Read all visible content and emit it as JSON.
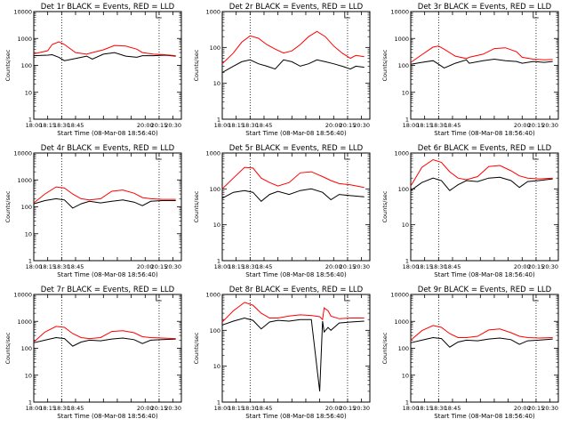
{
  "colors": {
    "events": "#000000",
    "lld": "#ff0000",
    "background": "#ffffff"
  },
  "chart_data": [
    {
      "type": "line",
      "title": "Det 1r BLACK = Events, RED = LLD",
      "xlabel": "Start Time (08-Mar-08 18:56:40)",
      "ylabel": "Counts/sec",
      "xticks": [
        "18:00",
        "18:15",
        "18:30",
        "18:45",
        "20:00",
        "20:15",
        "20:30"
      ],
      "yticks": [
        "1",
        "10",
        "100",
        "1000",
        "10000"
      ],
      "yscale": "log",
      "ylim": [
        1,
        10000
      ],
      "x_hours": [
        18.0,
        18.25,
        18.33,
        18.45,
        18.55,
        18.75,
        18.95,
        19.05,
        19.25,
        19.45,
        19.65,
        19.85,
        19.95,
        20.15,
        20.35,
        20.55
      ],
      "series": [
        {
          "name": "BLACK = Events",
          "values": [
            230,
            240,
            250,
            200,
            150,
            180,
            220,
            170,
            260,
            300,
            220,
            200,
            230,
            230,
            240,
            220
          ]
        },
        {
          "name": "RED = LLD",
          "values": [
            270,
            350,
            600,
            750,
            600,
            300,
            260,
            300,
            380,
            550,
            520,
            400,
            300,
            260,
            250,
            230
          ]
        }
      ]
    },
    {
      "type": "line",
      "title": "Det 2r BLACK = Events, RED = LLD",
      "xlabel": "Start Time (08-Mar-08 18:56:40)",
      "ylabel": "Counts/sec",
      "xticks": [
        "18:00",
        "18:15",
        "18:30",
        "18:45",
        "20:00",
        "20:15",
        "20:30"
      ],
      "yticks": [
        "1",
        "10",
        "100",
        "1000"
      ],
      "yscale": "log",
      "ylim": [
        1,
        1000
      ],
      "x_hours": [
        18.0,
        18.2,
        18.35,
        18.5,
        18.65,
        18.8,
        18.95,
        19.1,
        19.25,
        19.4,
        19.55,
        19.7,
        19.85,
        20.0,
        20.15,
        20.3,
        20.4,
        20.55
      ],
      "series": [
        {
          "name": "BLACK = Events",
          "values": [
            20,
            30,
            40,
            45,
            35,
            30,
            25,
            45,
            40,
            30,
            35,
            45,
            40,
            35,
            30,
            25,
            30,
            28
          ]
        },
        {
          "name": "RED = LLD",
          "values": [
            35,
            70,
            140,
            210,
            180,
            120,
            90,
            70,
            80,
            120,
            200,
            280,
            200,
            110,
            70,
            50,
            60,
            55
          ]
        }
      ]
    },
    {
      "type": "line",
      "title": "Det 3r BLACK = Events, RED = LLD",
      "xlabel": "Start Time (08-Mar-08 18:56:40)",
      "ylabel": "Counts/sec",
      "xticks": [
        "18:00",
        "18:15",
        "18:30",
        "18:45",
        "20:00",
        "20:15",
        "20:30"
      ],
      "yticks": [
        "1",
        "10",
        "100",
        "1000",
        "10000"
      ],
      "yscale": "log",
      "ylim": [
        1,
        10000
      ],
      "x_hours": [
        18.0,
        18.2,
        18.4,
        18.5,
        18.6,
        18.8,
        19.0,
        19.05,
        19.3,
        19.5,
        19.7,
        19.9,
        20.0,
        20.2,
        20.4,
        20.55
      ],
      "series": [
        {
          "name": "BLACK = Events",
          "values": [
            110,
            130,
            150,
            110,
            80,
            120,
            160,
            120,
            150,
            170,
            150,
            140,
            120,
            140,
            130,
            140
          ]
        },
        {
          "name": "RED = LLD",
          "values": [
            130,
            250,
            480,
            520,
            400,
            220,
            180,
            200,
            260,
            420,
            450,
            320,
            200,
            170,
            160,
            165
          ]
        }
      ]
    },
    {
      "type": "line",
      "title": "Det 4r BLACK = Events, RED = LLD",
      "xlabel": "Start Time (08-Mar-08 18:56:40)",
      "ylabel": "Counts/sec",
      "xticks": [
        "18:00",
        "18:15",
        "18:30",
        "18:45",
        "20:00",
        "20:15",
        "20:30"
      ],
      "yticks": [
        "1",
        "10",
        "100",
        "1000",
        "10000"
      ],
      "yscale": "log",
      "ylim": [
        1,
        10000
      ],
      "x_hours": [
        18.0,
        18.2,
        18.4,
        18.55,
        18.7,
        18.85,
        19.0,
        19.2,
        19.4,
        19.6,
        19.8,
        19.95,
        20.1,
        20.3,
        20.55
      ],
      "series": [
        {
          "name": "BLACK = Events",
          "values": [
            130,
            170,
            200,
            180,
            90,
            130,
            160,
            140,
            160,
            180,
            150,
            110,
            160,
            170,
            170
          ]
        },
        {
          "name": "RED = LLD",
          "values": [
            140,
            300,
            550,
            500,
            300,
            200,
            180,
            200,
            380,
            420,
            320,
            220,
            200,
            190,
            190
          ]
        }
      ]
    },
    {
      "type": "line",
      "title": "Det 5r BLACK = Events, RED = LLD",
      "xlabel": "Start Time (08-Mar-08 18:56:40)",
      "ylabel": "Counts/sec",
      "xticks": [
        "18:00",
        "18:15",
        "18:30",
        "18:45",
        "20:00",
        "20:15",
        "20:30"
      ],
      "yticks": [
        "1",
        "10",
        "100",
        "1000"
      ],
      "yscale": "log",
      "ylim": [
        1,
        1000
      ],
      "x_hours": [
        18.0,
        18.2,
        18.4,
        18.55,
        18.7,
        18.85,
        19.0,
        19.2,
        19.4,
        19.6,
        19.8,
        19.95,
        20.1,
        20.3,
        20.55
      ],
      "series": [
        {
          "name": "BLACK = Events",
          "values": [
            55,
            80,
            90,
            80,
            45,
            70,
            85,
            70,
            90,
            100,
            80,
            50,
            70,
            65,
            60
          ]
        },
        {
          "name": "RED = LLD",
          "values": [
            100,
            200,
            400,
            380,
            200,
            150,
            120,
            150,
            280,
            300,
            220,
            170,
            140,
            130,
            110
          ]
        }
      ]
    },
    {
      "type": "line",
      "title": "Det 6r BLACK = Events, RED = LLD",
      "xlabel": "Start Time (08-Mar-08 18:56:40)",
      "ylabel": "Counts/sec",
      "xticks": [
        "18:00",
        "18:15",
        "18:30",
        "18:45",
        "20:00",
        "20:15",
        "20:30"
      ],
      "yticks": [
        "1",
        "10",
        "100",
        "1000"
      ],
      "yscale": "log",
      "ylim": [
        1,
        1000
      ],
      "x_hours": [
        18.0,
        18.2,
        18.4,
        18.55,
        18.7,
        18.85,
        19.0,
        19.2,
        19.4,
        19.6,
        19.8,
        19.95,
        20.1,
        20.3,
        20.55
      ],
      "series": [
        {
          "name": "BLACK = Events",
          "values": [
            90,
            150,
            200,
            170,
            90,
            130,
            170,
            160,
            200,
            210,
            170,
            110,
            160,
            170,
            190
          ]
        },
        {
          "name": "RED = LLD",
          "values": [
            120,
            400,
            650,
            550,
            300,
            200,
            180,
            220,
            420,
            450,
            320,
            230,
            200,
            190,
            200
          ]
        }
      ]
    },
    {
      "type": "line",
      "title": "Det 7r BLACK = Events, RED = LLD",
      "xlabel": "Start Time (08-Mar-08 18:56:40)",
      "ylabel": "Counts/sec",
      "xticks": [
        "18:00",
        "18:15",
        "18:30",
        "18:45",
        "20:00",
        "20:15",
        "20:30"
      ],
      "yticks": [
        "1",
        "10",
        "100",
        "1000",
        "10000"
      ],
      "yscale": "log",
      "ylim": [
        1,
        10000
      ],
      "x_hours": [
        18.0,
        18.2,
        18.4,
        18.55,
        18.7,
        18.85,
        19.0,
        19.2,
        19.4,
        19.6,
        19.8,
        19.95,
        20.1,
        20.3,
        20.55
      ],
      "series": [
        {
          "name": "BLACK = Events",
          "values": [
            160,
            200,
            250,
            230,
            120,
            170,
            200,
            190,
            220,
            240,
            210,
            150,
            200,
            210,
            220
          ]
        },
        {
          "name": "RED = LLD",
          "values": [
            170,
            400,
            650,
            600,
            350,
            250,
            230,
            250,
            420,
            450,
            380,
            270,
            250,
            240,
            230
          ]
        }
      ]
    },
    {
      "type": "line",
      "title": "Det 8r BLACK = Events, RED = LLD",
      "xlabel": "Start Time (08-Mar-08 18:56:40)",
      "ylabel": "Counts/sec",
      "xticks": [
        "18:00",
        "18:15",
        "18:30",
        "18:45",
        "20:00",
        "20:15",
        "20:30"
      ],
      "yticks": [
        "1",
        "10",
        "100",
        "1000"
      ],
      "yscale": "log",
      "ylim": [
        1,
        1000
      ],
      "x_hours": [
        18.0,
        18.2,
        18.4,
        18.55,
        18.7,
        18.85,
        19.0,
        19.2,
        19.4,
        19.6,
        19.75,
        19.8,
        19.83,
        19.9,
        19.95,
        20.1,
        20.3,
        20.55
      ],
      "series": [
        {
          "name": "BLACK = Events",
          "values": [
            140,
            180,
            220,
            190,
            110,
            170,
            190,
            180,
            200,
            200,
            2,
            180,
            90,
            120,
            100,
            160,
            170,
            180
          ]
        },
        {
          "name": "RED = LLD",
          "values": [
            170,
            350,
            600,
            500,
            300,
            220,
            220,
            250,
            270,
            260,
            240,
            200,
            420,
            350,
            250,
            210,
            220,
            220
          ]
        }
      ]
    },
    {
      "type": "line",
      "title": "Det 9r BLACK = Events, RED = LLD",
      "xlabel": "Start Time (08-Mar-08 18:56:40)",
      "ylabel": "Counts/sec",
      "xticks": [
        "18:00",
        "18:15",
        "18:30",
        "18:45",
        "20:00",
        "20:15",
        "20:30"
      ],
      "yticks": [
        "1",
        "10",
        "100",
        "1000",
        "10000"
      ],
      "yscale": "log",
      "ylim": [
        1,
        10000
      ],
      "x_hours": [
        18.0,
        18.2,
        18.4,
        18.55,
        18.7,
        18.85,
        19.0,
        19.2,
        19.4,
        19.6,
        19.8,
        19.95,
        20.1,
        20.3,
        20.55
      ],
      "series": [
        {
          "name": "BLACK = Events",
          "values": [
            160,
            200,
            250,
            230,
            110,
            170,
            200,
            190,
            220,
            240,
            210,
            140,
            190,
            200,
            220
          ]
        },
        {
          "name": "RED = LLD",
          "values": [
            200,
            450,
            700,
            600,
            350,
            250,
            250,
            280,
            480,
            520,
            380,
            280,
            250,
            240,
            250
          ]
        }
      ]
    }
  ]
}
